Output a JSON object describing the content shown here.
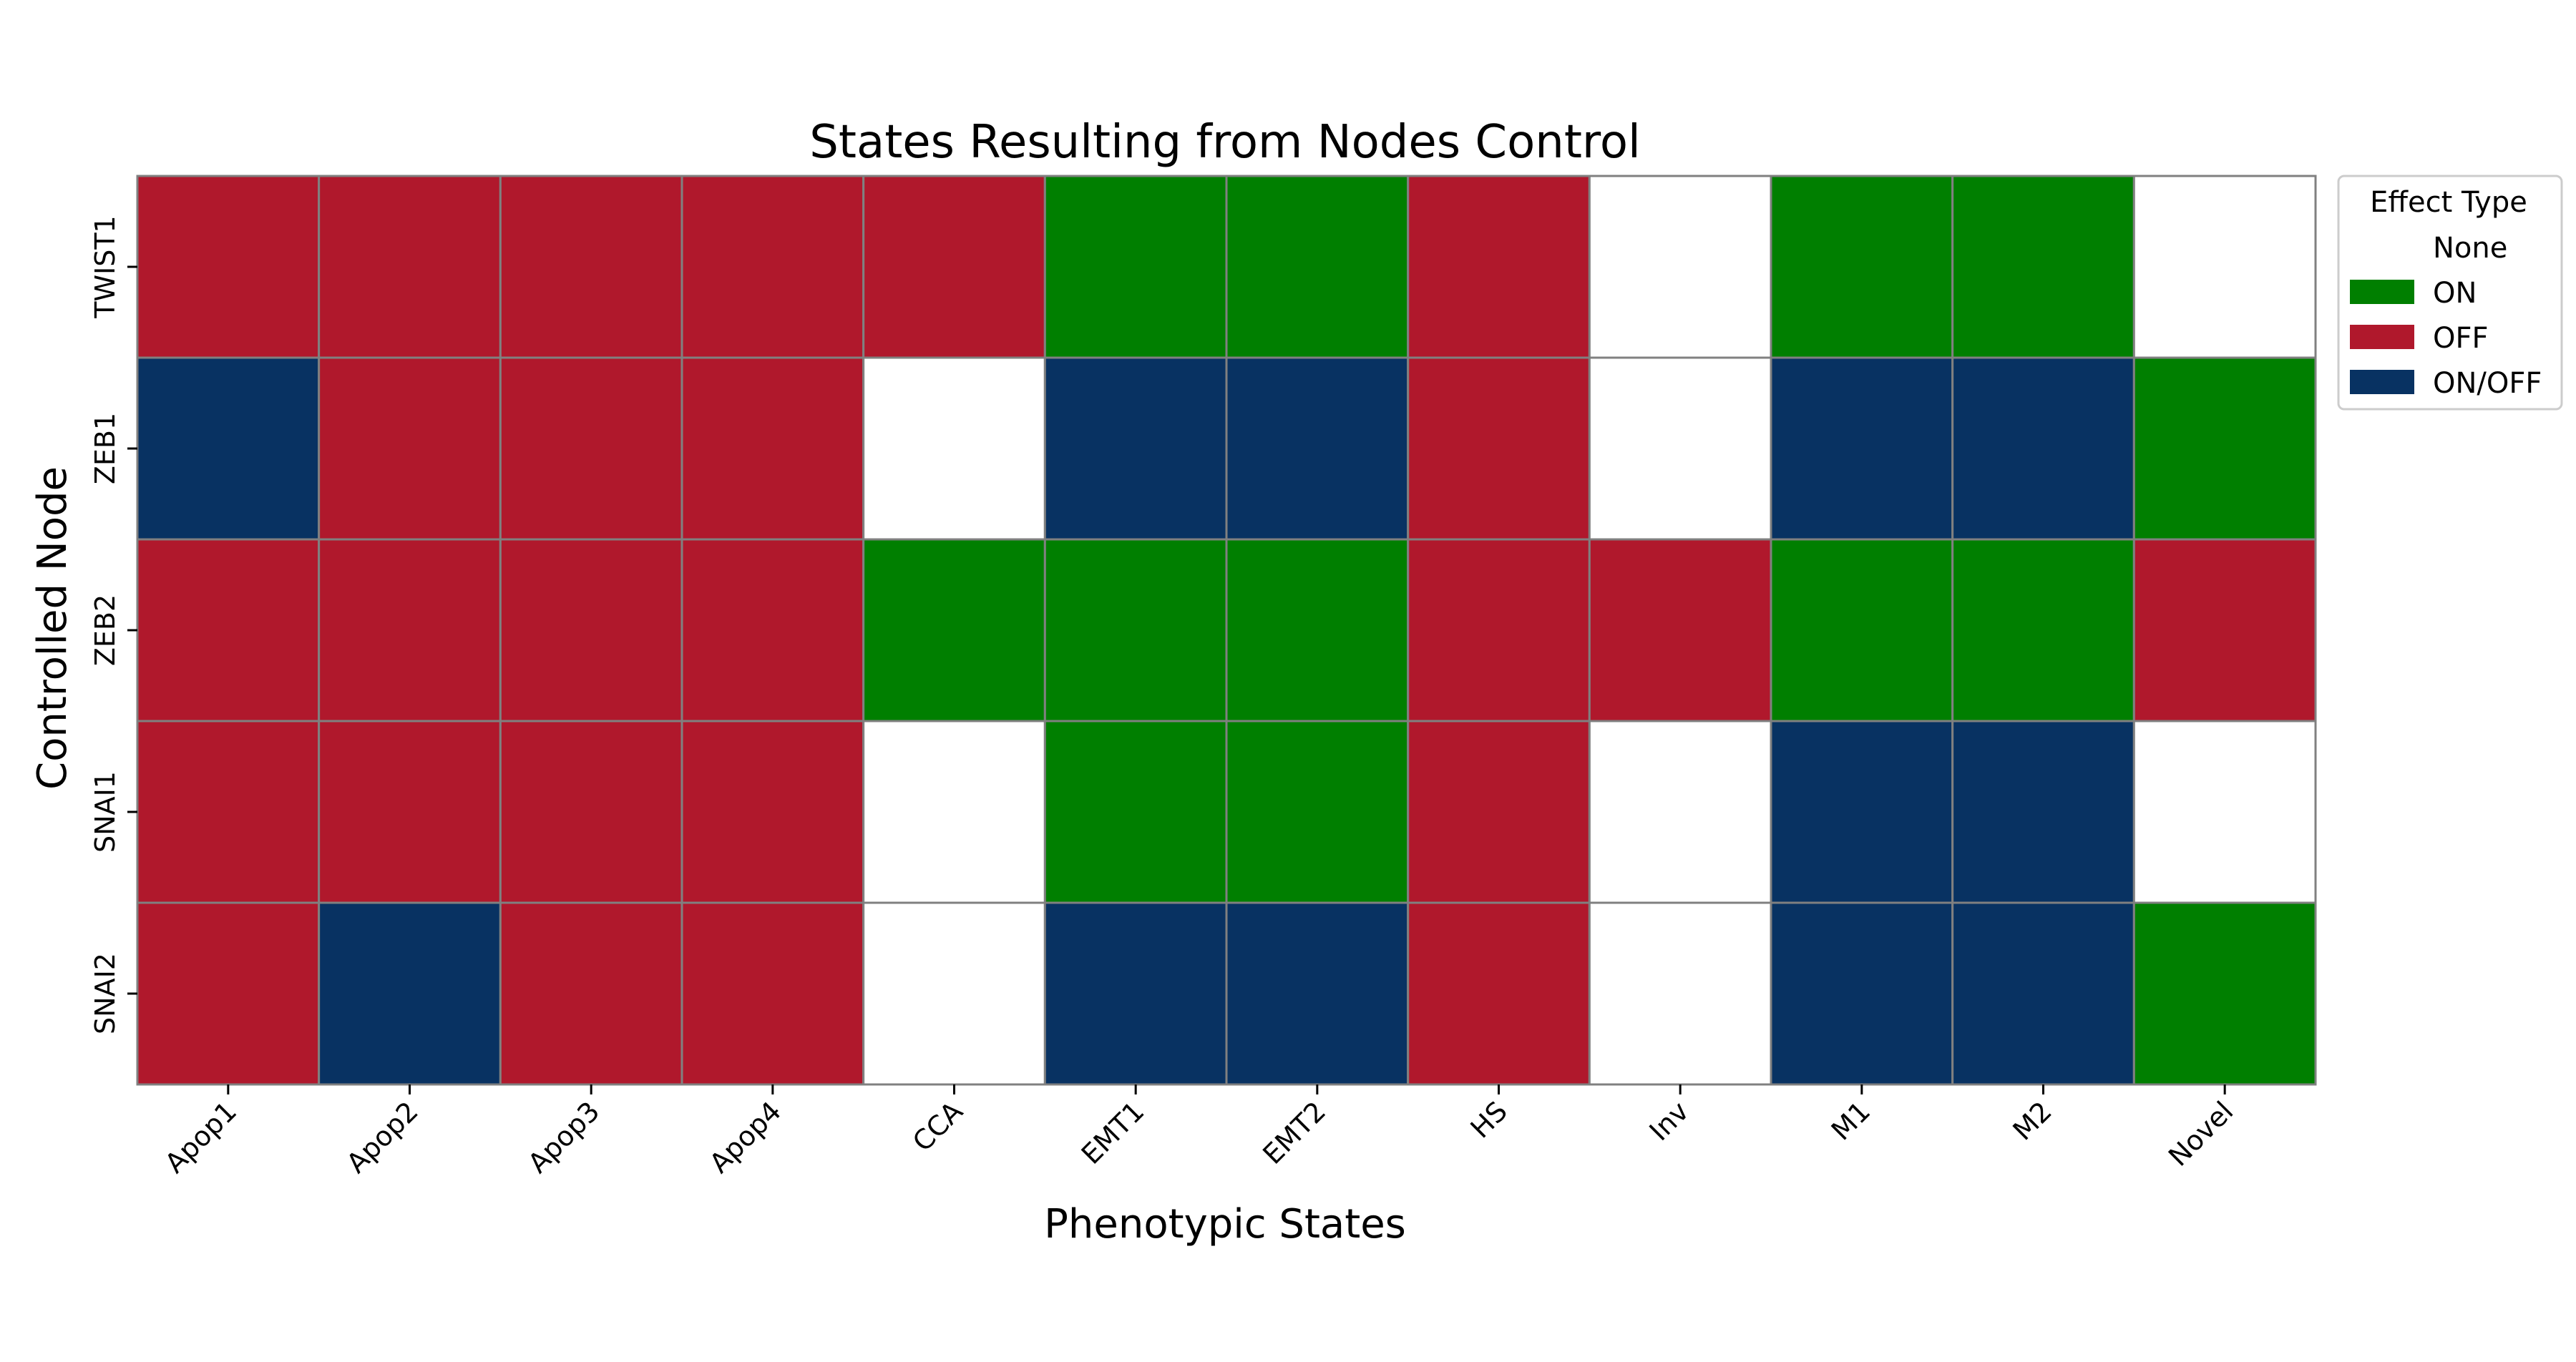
{
  "chart_data": {
    "type": "heatmap",
    "title": "States Resulting from Nodes Control",
    "xlabel": "Phenotypic States",
    "ylabel": "Controlled Node",
    "x_categories": [
      "Apop1",
      "Apop2",
      "Apop3",
      "Apop4",
      "CCA",
      "EMT1",
      "EMT2",
      "HS",
      "Inv",
      "M1",
      "M2",
      "Novel"
    ],
    "y_categories": [
      "TWIST1",
      "ZEB1",
      "ZEB2",
      "SNAI1",
      "SNAI2"
    ],
    "values": [
      [
        "OFF",
        "OFF",
        "OFF",
        "OFF",
        "OFF",
        "ON",
        "ON",
        "OFF",
        "None",
        "ON",
        "ON",
        "None"
      ],
      [
        "ON/OFF",
        "OFF",
        "OFF",
        "OFF",
        "None",
        "ON/OFF",
        "ON/OFF",
        "OFF",
        "None",
        "ON/OFF",
        "ON/OFF",
        "ON"
      ],
      [
        "OFF",
        "OFF",
        "OFF",
        "OFF",
        "ON",
        "ON",
        "ON",
        "OFF",
        "OFF",
        "ON",
        "ON",
        "OFF"
      ],
      [
        "OFF",
        "OFF",
        "OFF",
        "OFF",
        "None",
        "ON",
        "ON",
        "OFF",
        "None",
        "ON/OFF",
        "ON/OFF",
        "None"
      ],
      [
        "OFF",
        "ON/OFF",
        "OFF",
        "OFF",
        "None",
        "ON/OFF",
        "ON/OFF",
        "OFF",
        "None",
        "ON/OFF",
        "ON/OFF",
        "ON"
      ]
    ],
    "legend": {
      "title": "Effect Type",
      "placement": "outside-right",
      "entries": [
        {
          "label": "None",
          "color": "#ffffff"
        },
        {
          "label": "ON",
          "color": "#007f00"
        },
        {
          "label": "OFF",
          "color": "#b0182c"
        },
        {
          "label": "ON/OFF",
          "color": "#083262"
        }
      ]
    },
    "grid": false
  }
}
